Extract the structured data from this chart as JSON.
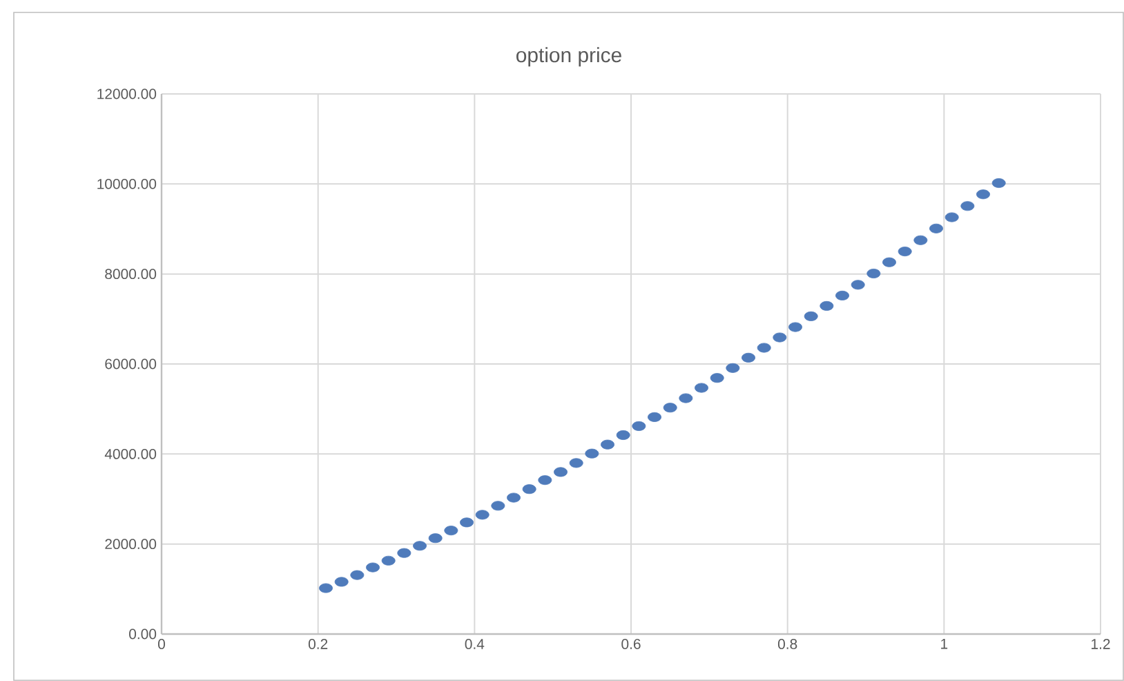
{
  "chart_data": {
    "type": "scatter",
    "title": "option price",
    "x": [
      0.21,
      0.23,
      0.25,
      0.27,
      0.29,
      0.31,
      0.33,
      0.35,
      0.37,
      0.39,
      0.41,
      0.43,
      0.45,
      0.47,
      0.49,
      0.51,
      0.53,
      0.55,
      0.57,
      0.59,
      0.61,
      0.63,
      0.65,
      0.67,
      0.69,
      0.71,
      0.73,
      0.75,
      0.77,
      0.79,
      0.81,
      0.83,
      0.85,
      0.87,
      0.89,
      0.91,
      0.93,
      0.95,
      0.97,
      0.99,
      1.01,
      1.03,
      1.05,
      1.07
    ],
    "series": [
      {
        "color": "#4f7bbb",
        "values": [
          1020,
          1160,
          1310,
          1480,
          1630,
          1800,
          1960,
          2130,
          2300,
          2480,
          2650,
          2850,
          3030,
          3220,
          3420,
          3600,
          3800,
          4010,
          4210,
          4420,
          4620,
          4820,
          5030,
          5240,
          5470,
          5690,
          5910,
          6140,
          6360,
          6590,
          6820,
          7060,
          7290,
          7520,
          7760,
          8010,
          8260,
          8500,
          8750,
          9010,
          9260,
          9510,
          9770,
          10020
        ]
      }
    ],
    "xlim": [
      0,
      1.2
    ],
    "xticks": [
      0,
      0.2,
      0.4,
      0.6,
      0.8,
      1,
      1.2
    ],
    "ylim": [
      0,
      12000
    ],
    "yticks": [
      {
        "value": 0,
        "label": "0.00"
      },
      {
        "value": 2000,
        "label": "2000.00"
      },
      {
        "value": 4000,
        "label": "4000.00"
      },
      {
        "value": 6000,
        "label": "6000.00"
      },
      {
        "value": 8000,
        "label": "8000.00"
      },
      {
        "value": 10000,
        "label": "10000.00"
      },
      {
        "value": 12000,
        "label": "12000.00"
      }
    ],
    "grid": true,
    "marker": "circle"
  }
}
